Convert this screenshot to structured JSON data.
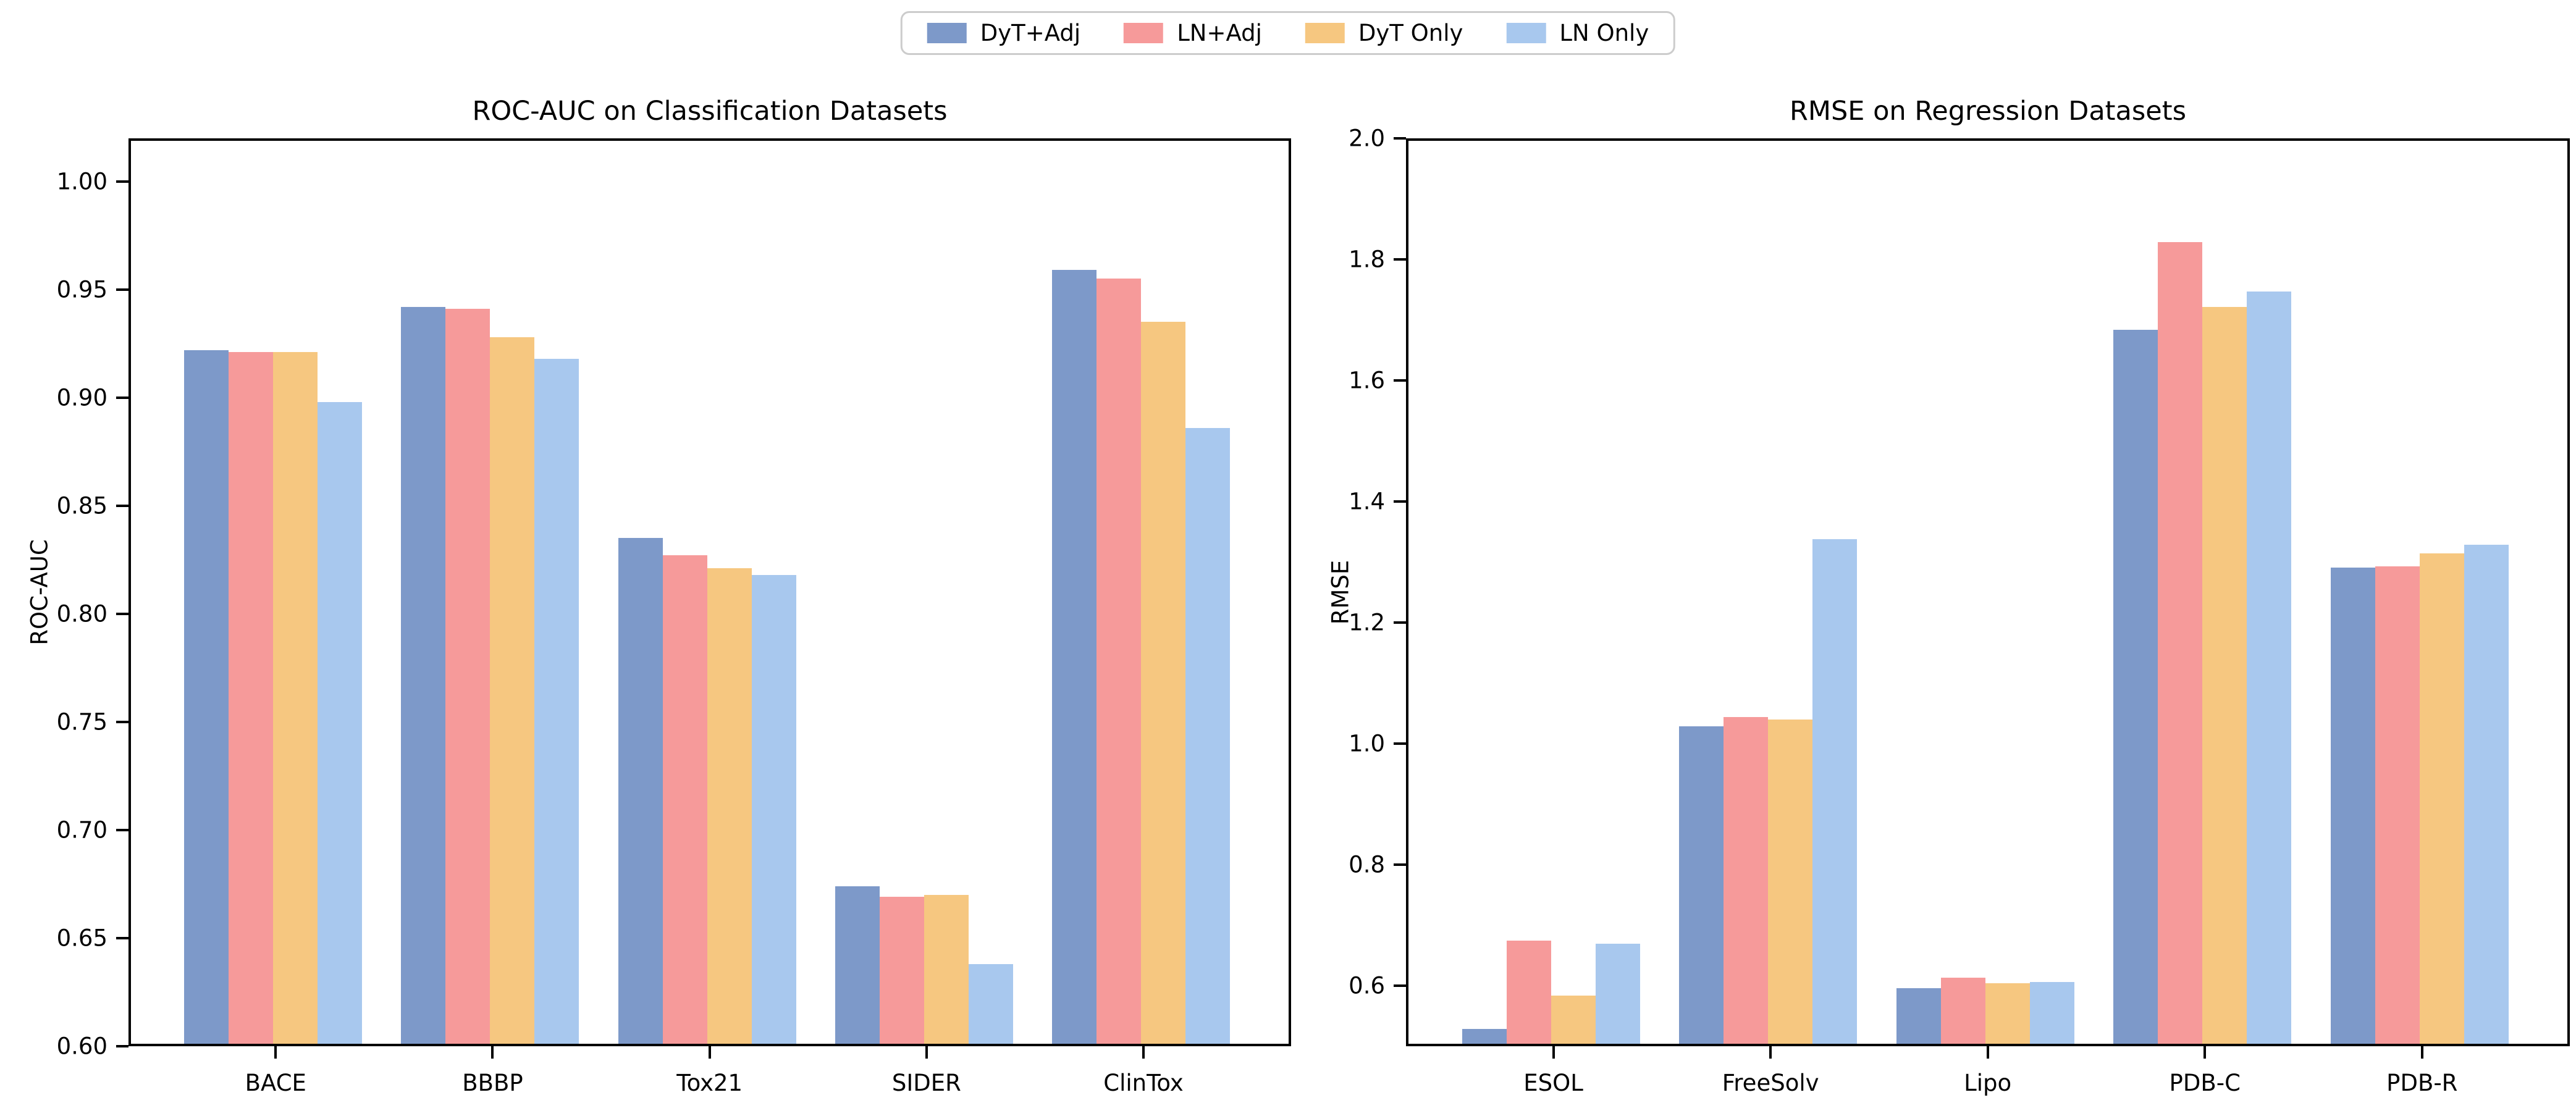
{
  "figure": {
    "background": "#ffffff"
  },
  "legend": {
    "position": "top-center",
    "entries": [
      {
        "label": "DyT+Adj",
        "color": "#7D99C9"
      },
      {
        "label": "LN+Adj",
        "color": "#F69A9A"
      },
      {
        "label": "DyT Only",
        "color": "#F6C780"
      },
      {
        "label": "LN Only",
        "color": "#A8C8EE"
      }
    ]
  },
  "chart_data": [
    {
      "type": "bar",
      "title": "ROC-AUC on Classification Datasets",
      "xlabel": "",
      "ylabel": "ROC-AUC",
      "categories": [
        "BACE",
        "BBBP",
        "Tox21",
        "SIDER",
        "ClinTox"
      ],
      "series": [
        {
          "name": "DyT+Adj",
          "color": "#7D99C9",
          "values": [
            0.921,
            0.941,
            0.834,
            0.673,
            0.958
          ]
        },
        {
          "name": "LN+Adj",
          "color": "#F69A9A",
          "values": [
            0.92,
            0.94,
            0.826,
            0.668,
            0.954
          ]
        },
        {
          "name": "DyT Only",
          "color": "#F6C780",
          "values": [
            0.92,
            0.927,
            0.82,
            0.669,
            0.934
          ]
        },
        {
          "name": "LN Only",
          "color": "#A8C8EE",
          "values": [
            0.897,
            0.917,
            0.817,
            0.637,
            0.885
          ]
        }
      ],
      "ylim": [
        0.6,
        1.02
      ],
      "yticks": [
        1.0,
        0.95,
        0.9,
        0.85,
        0.8,
        0.75,
        0.7,
        0.65,
        0.6
      ],
      "ytick_labels": [
        "1.00",
        "0.95",
        "0.90",
        "0.85",
        "0.80",
        "0.75",
        "0.70",
        "0.65",
        "0.60"
      ],
      "grid": false,
      "legend_position": "figure-top-center"
    },
    {
      "type": "bar",
      "title": "RMSE on Regression Datasets",
      "xlabel": "",
      "ylabel": "RMSE",
      "categories": [
        "ESOL",
        "FreeSolv",
        "Lipo",
        "PDB-C",
        "PDB-R"
      ],
      "series": [
        {
          "name": "DyT+Adj",
          "color": "#7D99C9",
          "values": [
            0.525,
            1.025,
            0.592,
            1.68,
            1.287
          ]
        },
        {
          "name": "LN+Adj",
          "color": "#F69A9A",
          "values": [
            0.67,
            1.04,
            0.609,
            1.825,
            1.289
          ]
        },
        {
          "name": "DyT Only",
          "color": "#F6C780",
          "values": [
            0.58,
            1.036,
            0.6,
            1.717,
            1.31
          ]
        },
        {
          "name": "LN Only",
          "color": "#A8C8EE",
          "values": [
            0.665,
            1.334,
            0.602,
            1.743,
            1.325
          ]
        }
      ],
      "ylim": [
        0.5,
        2.0
      ],
      "yticks": [
        2.0,
        1.8,
        1.6,
        1.4,
        1.2,
        1.0,
        0.8,
        0.6
      ],
      "ytick_labels": [
        "2.0",
        "1.8",
        "1.6",
        "1.4",
        "1.2",
        "1.0",
        "0.8",
        "0.6"
      ],
      "grid": false,
      "legend_position": "figure-top-center"
    }
  ]
}
